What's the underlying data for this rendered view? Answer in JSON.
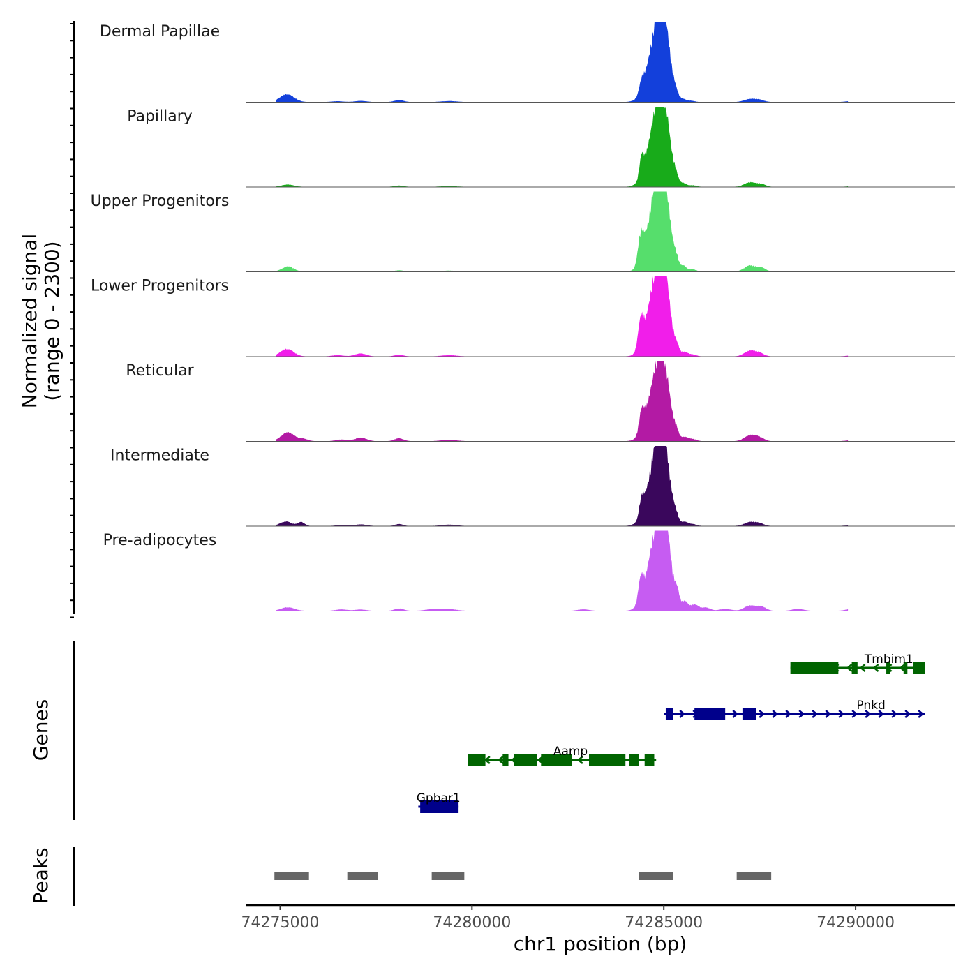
{
  "chart_data": {
    "type": "area",
    "chromosome": "chr1",
    "region": [
      74274100,
      74292600
    ],
    "signal_title": [
      "Normalized signal",
      "(range 0 - 2300)"
    ],
    "signal_range": [
      0,
      2300
    ],
    "xlabel": "chr1 position (bp)",
    "x_ticks": [
      74275000,
      74280000,
      74285000,
      74290000
    ],
    "x_tick_labels": [
      "74275000",
      "74280000",
      "74285000",
      "74290000"
    ],
    "tracks": [
      {
        "name": "Dermal Papillae",
        "color": "#1340DB",
        "peaks": [
          [
            74275180,
            240,
            180
          ],
          [
            74276500,
            25,
            150
          ],
          [
            74277100,
            35,
            150
          ],
          [
            74278100,
            60,
            120
          ],
          [
            74279400,
            30,
            200
          ],
          [
            74284420,
            300,
            60
          ],
          [
            74284540,
            80,
            90
          ],
          [
            74284800,
            1600,
            230
          ],
          [
            74284980,
            1850,
            170
          ],
          [
            74285320,
            120,
            60
          ],
          [
            74285500,
            70,
            80
          ],
          [
            74285700,
            40,
            100
          ],
          [
            74287250,
            90,
            150
          ],
          [
            74287500,
            60,
            120
          ],
          [
            74289900,
            30,
            150
          ],
          [
            74290800,
            25,
            200
          ]
        ]
      },
      {
        "name": "Papillary",
        "color": "#18AB1A",
        "peaks": [
          [
            74275200,
            70,
            160
          ],
          [
            74278100,
            40,
            120
          ],
          [
            74279400,
            25,
            200
          ],
          [
            74284420,
            560,
            55
          ],
          [
            74284540,
            90,
            90
          ],
          [
            74284800,
            1600,
            230
          ],
          [
            74284980,
            1850,
            170
          ],
          [
            74285320,
            180,
            60
          ],
          [
            74285520,
            100,
            70
          ],
          [
            74285750,
            50,
            100
          ],
          [
            74287250,
            140,
            150
          ],
          [
            74287550,
            80,
            110
          ],
          [
            74290000,
            40,
            150
          ]
        ]
      },
      {
        "name": "Upper Progenitors",
        "color": "#56DE6C",
        "peaks": [
          [
            74275200,
            160,
            150
          ],
          [
            74278100,
            40,
            120
          ],
          [
            74279400,
            30,
            200
          ],
          [
            74284400,
            850,
            70
          ],
          [
            74284560,
            120,
            90
          ],
          [
            74284800,
            1800,
            230
          ],
          [
            74284970,
            2200,
            170
          ],
          [
            74285330,
            240,
            60
          ],
          [
            74285520,
            160,
            70
          ],
          [
            74285750,
            70,
            100
          ],
          [
            74287250,
            190,
            150
          ],
          [
            74287550,
            110,
            110
          ]
        ]
      },
      {
        "name": "Lower Progenitors",
        "color": "#F11EEA",
        "peaks": [
          [
            74275180,
            230,
            170
          ],
          [
            74276500,
            40,
            150
          ],
          [
            74277100,
            90,
            150
          ],
          [
            74278100,
            50,
            120
          ],
          [
            74279400,
            40,
            200
          ],
          [
            74284400,
            820,
            70
          ],
          [
            74284560,
            120,
            90
          ],
          [
            74284800,
            1800,
            230
          ],
          [
            74284970,
            1950,
            170
          ],
          [
            74285350,
            180,
            60
          ],
          [
            74285550,
            120,
            80
          ],
          [
            74285750,
            60,
            100
          ],
          [
            74287250,
            170,
            150
          ],
          [
            74287500,
            90,
            120
          ],
          [
            74289900,
            30,
            150
          ],
          [
            74290800,
            30,
            200
          ]
        ]
      },
      {
        "name": "Reticular",
        "color": "#B31AA4",
        "peaks": [
          [
            74275200,
            270,
            170
          ],
          [
            74275600,
            70,
            120
          ],
          [
            74276600,
            50,
            150
          ],
          [
            74277100,
            110,
            150
          ],
          [
            74278100,
            90,
            120
          ],
          [
            74279400,
            45,
            200
          ],
          [
            74284420,
            600,
            65
          ],
          [
            74284560,
            110,
            90
          ],
          [
            74284800,
            1500,
            230
          ],
          [
            74284980,
            1650,
            170
          ],
          [
            74285330,
            190,
            60
          ],
          [
            74285550,
            120,
            80
          ],
          [
            74285750,
            70,
            100
          ],
          [
            74287250,
            180,
            150
          ],
          [
            74287500,
            100,
            120
          ],
          [
            74289900,
            30,
            150
          ],
          [
            74290800,
            30,
            200
          ]
        ]
      },
      {
        "name": "Intermediate",
        "color": "#3A075C",
        "peaks": [
          [
            74275150,
            140,
            150
          ],
          [
            74275550,
            120,
            90
          ],
          [
            74276600,
            30,
            150
          ],
          [
            74277100,
            50,
            150
          ],
          [
            74278100,
            60,
            100
          ],
          [
            74279400,
            40,
            200
          ],
          [
            74284420,
            520,
            55
          ],
          [
            74284560,
            90,
            90
          ],
          [
            74284800,
            1700,
            230
          ],
          [
            74284980,
            1800,
            170
          ],
          [
            74285330,
            160,
            60
          ],
          [
            74285550,
            110,
            80
          ],
          [
            74285750,
            60,
            100
          ],
          [
            74287250,
            120,
            150
          ],
          [
            74287500,
            70,
            120
          ],
          [
            74289900,
            25,
            150
          ]
        ]
      },
      {
        "name": "Pre-adipocytes",
        "color": "#C65CF2",
        "peaks": [
          [
            74275200,
            110,
            170
          ],
          [
            74276600,
            45,
            150
          ],
          [
            74277100,
            40,
            150
          ],
          [
            74278100,
            70,
            120
          ],
          [
            74279000,
            55,
            200
          ],
          [
            74279400,
            50,
            200
          ],
          [
            74282900,
            45,
            150
          ],
          [
            74284400,
            680,
            65
          ],
          [
            74284580,
            160,
            90
          ],
          [
            74284820,
            1800,
            240
          ],
          [
            74284990,
            2050,
            170
          ],
          [
            74285350,
            380,
            60
          ],
          [
            74285550,
            260,
            80
          ],
          [
            74285800,
            190,
            110
          ],
          [
            74286100,
            100,
            110
          ],
          [
            74286600,
            60,
            150
          ],
          [
            74287250,
            160,
            150
          ],
          [
            74287550,
            120,
            120
          ],
          [
            74288500,
            60,
            150
          ],
          [
            74289900,
            60,
            150
          ],
          [
            74290800,
            80,
            200
          ],
          [
            74291400,
            40,
            150
          ]
        ]
      }
    ],
    "genes_title": "Genes",
    "genes": [
      {
        "name": "Tmbim1",
        "strand": "-",
        "color": "#006400",
        "row": 0,
        "start": 74288300,
        "end": 74291800,
        "exons": [
          [
            74288300,
            74289550
          ],
          [
            74289900,
            74290050
          ],
          [
            74290800,
            74290900
          ],
          [
            74291250,
            74291350
          ],
          [
            74291500,
            74291800
          ]
        ]
      },
      {
        "name": "Pnkd",
        "strand": "+",
        "color": "#00008B",
        "row": 1,
        "start": 74285000,
        "end": 74291800,
        "exons": [
          [
            74285050,
            74285250
          ],
          [
            74285800,
            74286600
          ],
          [
            74287050,
            74287400
          ]
        ]
      },
      {
        "name": "Aamp",
        "strand": "-",
        "color": "#006400",
        "row": 2,
        "start": 74279900,
        "end": 74284800,
        "exons": [
          [
            74279900,
            74280350
          ],
          [
            74280800,
            74280950
          ],
          [
            74281100,
            74281700
          ],
          [
            74281800,
            74282600
          ],
          [
            74283050,
            74284000
          ],
          [
            74284100,
            74284350
          ],
          [
            74284500,
            74284750
          ]
        ]
      },
      {
        "name": "Gpbar1",
        "strand": "+",
        "color": "#00008B",
        "row": 3,
        "start": 74278600,
        "end": 74279650,
        "exons": [
          [
            74278650,
            74279650
          ]
        ]
      }
    ],
    "peaks_title": "Peaks",
    "peak_regions": [
      [
        74274850,
        74275750
      ],
      [
        74276750,
        74277550
      ],
      [
        74278950,
        74279800
      ],
      [
        74284350,
        74285250
      ],
      [
        74286900,
        74287800
      ]
    ]
  }
}
